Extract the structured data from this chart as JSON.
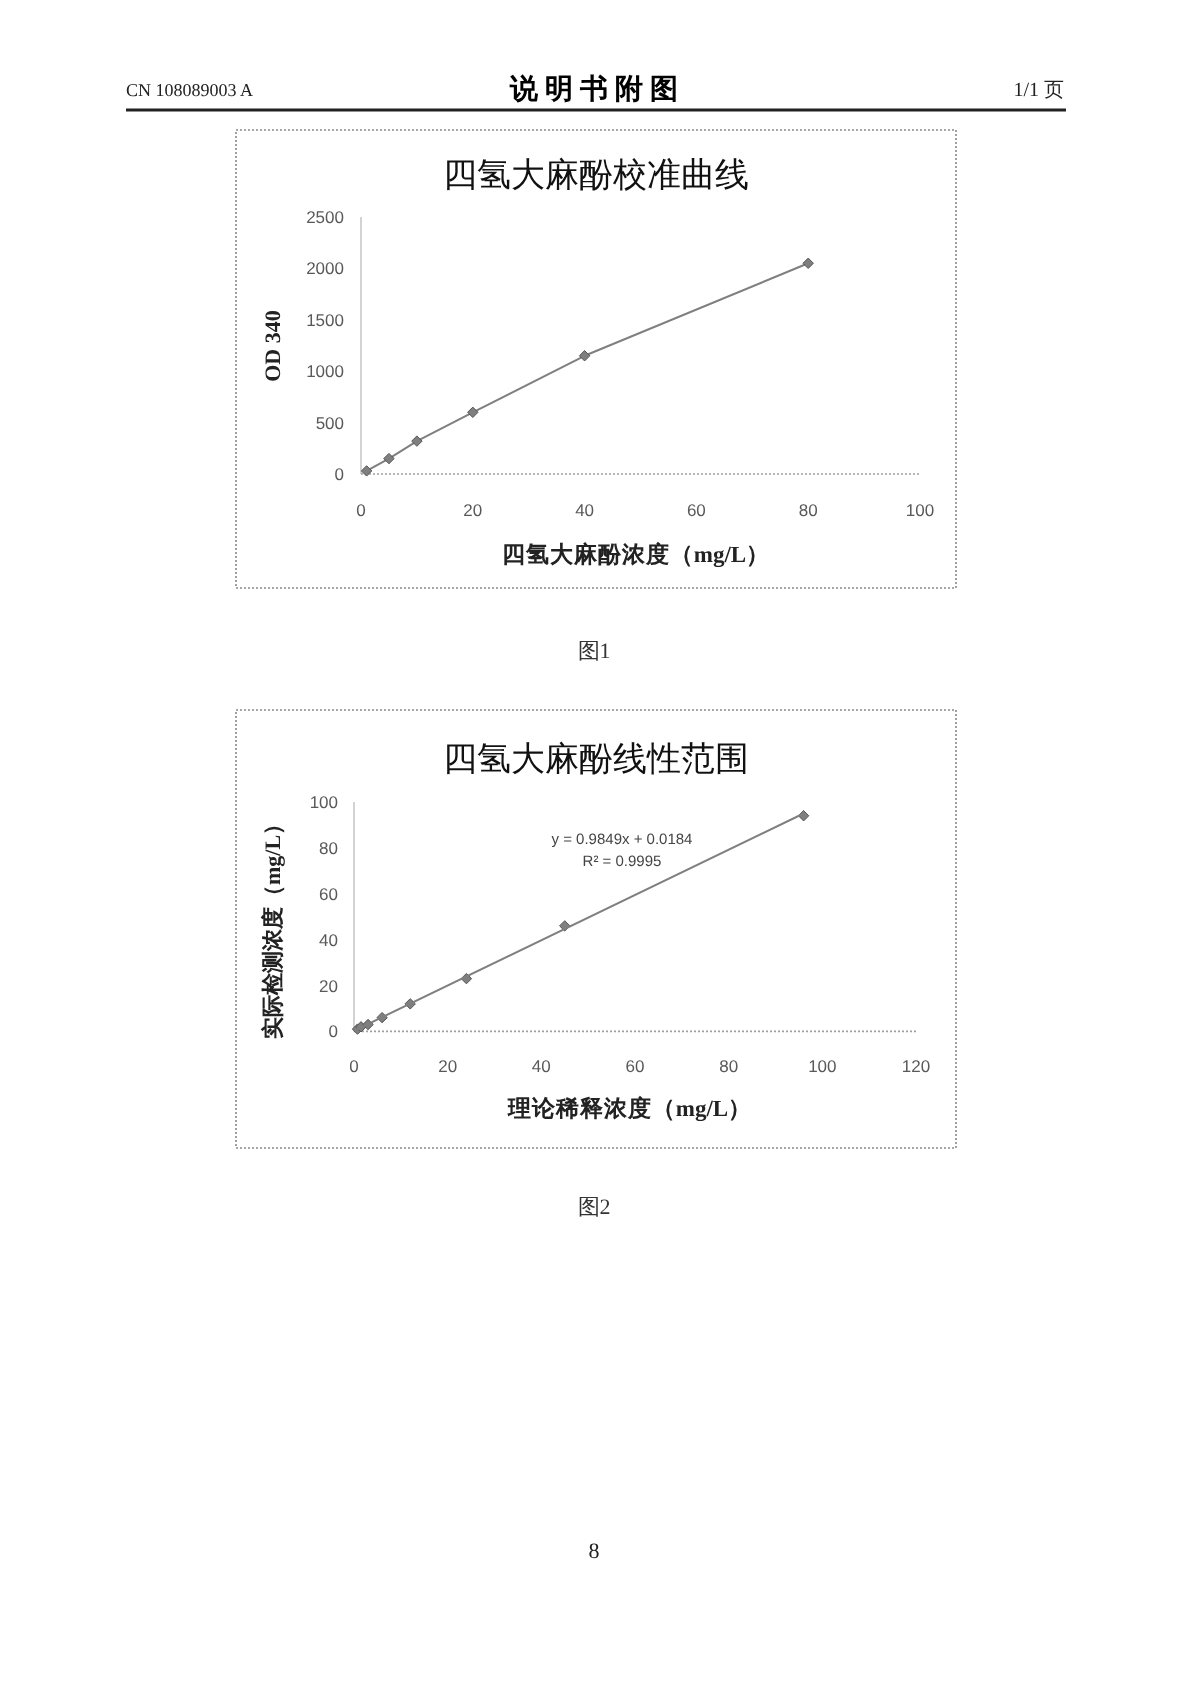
{
  "chart_data": [
    {
      "type": "line",
      "title": "四氢大麻酚校准曲线",
      "xlabel": "四氢大麻酚浓度（mg/L）",
      "ylabel": "OD 340",
      "x": [
        1,
        5,
        10,
        20,
        40,
        80
      ],
      "series": [
        {
          "color": "#7f7f7f",
          "values": [
            30,
            150,
            320,
            600,
            1150,
            2050
          ]
        }
      ],
      "xlim": [
        0,
        100
      ],
      "ylim": [
        0,
        2500
      ],
      "xticks": [
        0,
        20,
        40,
        60,
        80,
        100
      ],
      "yticks": [
        0,
        500,
        1000,
        1500,
        2000,
        2500
      ],
      "marker": "diamond",
      "annotations": [
        "CN 108089003 A",
        "说 明 书 附 图",
        "1/1 页",
        "图1"
      ]
    },
    {
      "type": "scatter",
      "title": "四氢大麻酚线性范围",
      "xlabel": "理论稀释浓度（mg/L）",
      "ylabel": "实际检测浓度（mg/L）",
      "x": [
        0.75,
        1.5,
        3,
        6,
        12,
        24,
        45,
        96
      ],
      "series": [
        {
          "color": "#7f7f7f",
          "values": [
            1,
            2,
            3,
            6,
            12,
            23,
            46,
            94
          ]
        },
        {
          "type": "line",
          "marker": "none",
          "color": "#7f7f7f",
          "x": [
            0.75,
            96
          ],
          "values": [
            1,
            95
          ]
        }
      ],
      "xlim": [
        0,
        120
      ],
      "ylim": [
        0,
        100
      ],
      "xticks": [
        0,
        20,
        40,
        60,
        80,
        100,
        120
      ],
      "yticks": [
        0,
        20,
        40,
        60,
        80,
        100
      ],
      "marker": "diamond",
      "annotations": [
        "y = 0.9849x + 0.0184",
        "R² = 0.9995",
        "图2",
        "8"
      ]
    }
  ]
}
